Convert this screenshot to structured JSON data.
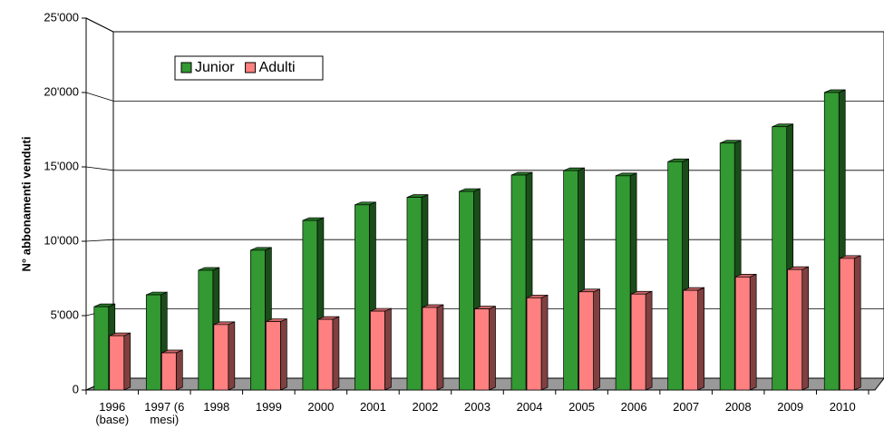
{
  "chart_data": {
    "type": "bar3d",
    "y_label": "N° abbonamenti venduti",
    "categories": [
      "1996 (base)",
      "1997 (6 mesi)",
      "1998",
      "1999",
      "2000",
      "2001",
      "2002",
      "2003",
      "2004",
      "2005",
      "2006",
      "2007",
      "2008",
      "2009",
      "2010"
    ],
    "series": [
      {
        "name": "Junior",
        "color": "#339933",
        "values": [
          5600,
          6400,
          8050,
          9400,
          11400,
          12450,
          12950,
          13350,
          14450,
          14750,
          14400,
          15350,
          16600,
          17700,
          20000
        ]
      },
      {
        "name": "Adulti",
        "color": "#ff8080",
        "values": [
          3650,
          2500,
          4400,
          4600,
          4750,
          5300,
          5550,
          5450,
          6200,
          6600,
          6450,
          6700,
          7600,
          8100,
          8850
        ]
      }
    ],
    "ylim": [
      0,
      25000
    ],
    "yticks": [
      0,
      {
        "value": 5000,
        "label": "5'000"
      },
      {
        "value": 10000,
        "label": "10'000"
      },
      {
        "value": 15000,
        "label": "15'000"
      },
      {
        "value": 20000,
        "label": "20'000"
      },
      {
        "value": 25000,
        "label": "25'000"
      }
    ],
    "grid": true
  }
}
